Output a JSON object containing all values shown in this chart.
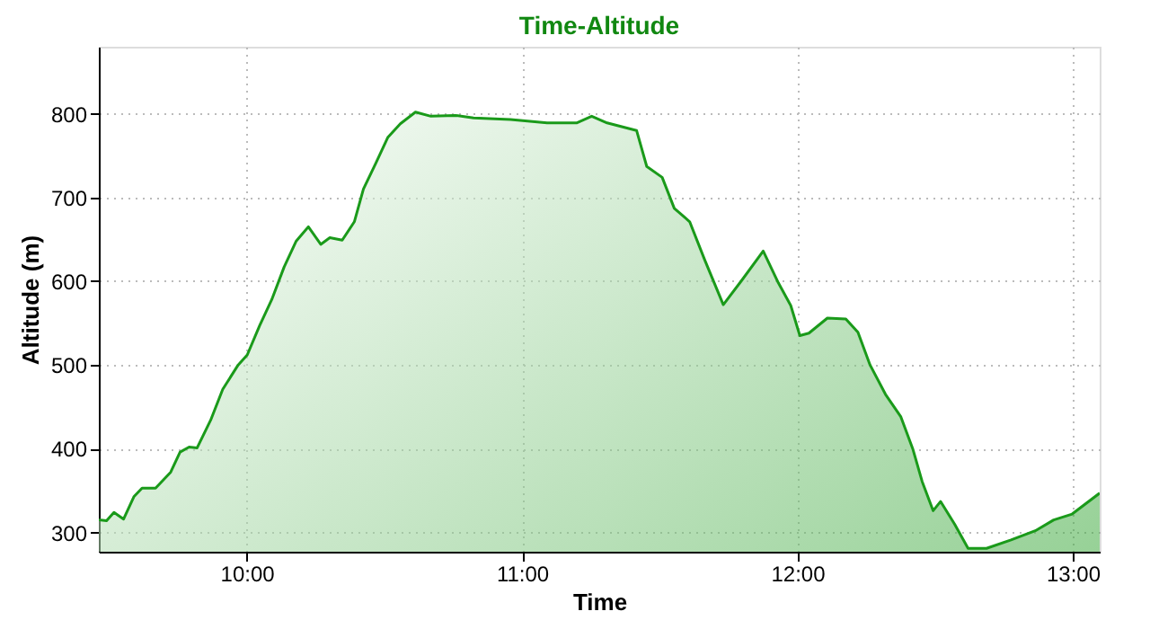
{
  "chart_data": {
    "type": "area",
    "title": "Time-Altitude",
    "xlabel": "Time",
    "ylabel": "Altitude (m)",
    "xlim": [
      9.463,
      13.098
    ],
    "ylim": [
      277,
      880
    ],
    "xticks": [
      {
        "value": 10,
        "label": "10:00"
      },
      {
        "value": 11,
        "label": "11:00"
      },
      {
        "value": 12,
        "label": "12:00"
      },
      {
        "value": 13,
        "label": "13:00"
      }
    ],
    "yticks": [
      300,
      400,
      500,
      600,
      700,
      800
    ],
    "grid": true,
    "line_style": "solid",
    "series": [
      {
        "color": "#1a9a1a",
        "x": [
          9.463,
          9.491,
          9.518,
          9.553,
          9.591,
          9.62,
          9.669,
          9.724,
          9.758,
          9.791,
          9.82,
          9.869,
          9.913,
          9.969,
          10.002,
          10.047,
          10.091,
          10.136,
          10.18,
          10.224,
          10.269,
          10.302,
          10.347,
          10.391,
          10.424,
          10.469,
          10.513,
          10.558,
          10.613,
          10.669,
          10.758,
          10.824,
          10.958,
          11.091,
          11.198,
          11.253,
          11.309,
          11.416,
          11.453,
          11.509,
          11.553,
          11.609,
          11.664,
          11.731,
          11.798,
          11.876,
          11.931,
          11.976,
          12.009,
          12.042,
          12.109,
          12.176,
          12.22,
          12.264,
          12.32,
          12.376,
          12.42,
          12.453,
          12.493,
          12.52,
          12.571,
          12.62,
          12.687,
          12.776,
          12.864,
          12.931,
          12.998,
          13.098
        ],
        "values": [
          315,
          314,
          324,
          316,
          343,
          353,
          353,
          372,
          396,
          402,
          401,
          434,
          471,
          500,
          512,
          547,
          578,
          617,
          648,
          665,
          644,
          652,
          649,
          671,
          710,
          741,
          772,
          788,
          802,
          797,
          798,
          795,
          793,
          789,
          789,
          797,
          789,
          780,
          737,
          724,
          687,
          671,
          625,
          572,
          601,
          636,
          598,
          571,
          535,
          538,
          556,
          555,
          539,
          500,
          465,
          438,
          399,
          361,
          326,
          337,
          310,
          281,
          281,
          291,
          302,
          315,
          322,
          347
        ]
      }
    ]
  }
}
